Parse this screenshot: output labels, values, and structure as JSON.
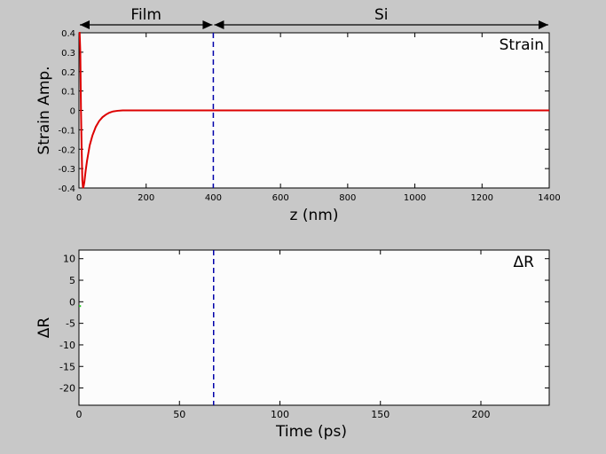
{
  "chart_data": [
    {
      "type": "line",
      "title": "",
      "xlabel": "z (nm)",
      "ylabel": "Strain Amp.",
      "annotation": "Strain",
      "xlim": [
        0,
        1400
      ],
      "ylim": [
        -0.4,
        0.4
      ],
      "xticks": [
        0,
        200,
        400,
        600,
        800,
        1000,
        1200,
        1400
      ],
      "yticks": [
        -0.4,
        -0.3,
        -0.2,
        -0.1,
        0,
        0.1,
        0.2,
        0.3,
        0.4
      ],
      "regions": [
        {
          "label": "Film",
          "from": 0,
          "to": 400
        },
        {
          "label": "Si",
          "from": 400,
          "to": 1400
        }
      ],
      "interface_line": {
        "x": 400,
        "color": "#0000aa",
        "style": "dashed"
      },
      "series": [
        {
          "color": "#dd0000",
          "x": [
            0,
            2,
            4,
            6,
            8,
            10,
            12,
            14,
            16,
            18,
            20,
            24,
            28,
            32,
            40,
            50,
            60,
            70,
            80,
            90,
            100,
            115,
            130,
            150,
            200,
            400,
            600,
            800,
            1000,
            1200,
            1400
          ],
          "y": [
            0.4,
            0.4,
            0.3,
            0.0,
            -0.2,
            -0.36,
            -0.4,
            -0.39,
            -0.37,
            -0.34,
            -0.31,
            -0.26,
            -0.22,
            -0.18,
            -0.13,
            -0.085,
            -0.055,
            -0.035,
            -0.022,
            -0.012,
            -0.006,
            -0.002,
            0,
            0,
            0,
            0,
            0,
            0,
            0,
            0,
            0
          ]
        }
      ],
      "grid": false
    },
    {
      "type": "line",
      "title": "",
      "xlabel": "Time (ps)",
      "ylabel": "ΔR",
      "annotation": "ΔR",
      "xlim": [
        0,
        234
      ],
      "ylim": [
        -24,
        12
      ],
      "xticks": [
        0,
        50,
        100,
        150,
        200
      ],
      "yticks": [
        -20,
        -15,
        -10,
        -5,
        0,
        5,
        10
      ],
      "interface_line": {
        "x": 67,
        "color": "#0000aa",
        "style": "dashed"
      },
      "series": [
        {
          "color": "#22cc22",
          "x": [
            0,
            1
          ],
          "y": [
            -1.0,
            -1.0
          ]
        }
      ],
      "grid": false
    }
  ]
}
